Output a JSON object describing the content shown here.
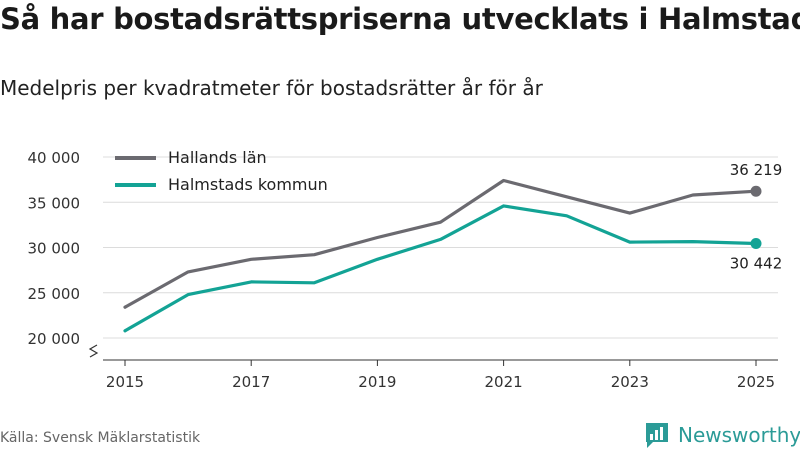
{
  "header": {
    "title": "Så har bostadsrättspriserna utvecklats i Halmstad",
    "subtitle": "Medelpris per kvadratmeter för bostadsrätter år för år"
  },
  "footer": {
    "source": "Källa: Svensk Mäklarstatistik",
    "brand": "Newsworthy",
    "brand_color": "#2b9b97"
  },
  "chart_data": {
    "type": "line",
    "title": "Så har bostadsrättspriserna utvecklats i Halmstad",
    "subtitle": "Medelpris per kvadratmeter för bostadsrätter år för år",
    "xlabel": "",
    "ylabel": "",
    "x": [
      2015,
      2016,
      2017,
      2018,
      2019,
      2020,
      2021,
      2022,
      2023,
      2024,
      2025
    ],
    "xticks": [
      "2015",
      "2017",
      "2019",
      "2021",
      "2023",
      "2025"
    ],
    "xtick_values": [
      2015,
      2017,
      2019,
      2021,
      2023,
      2025
    ],
    "ylim": [
      20000,
      40000
    ],
    "yticks": [
      "20 000",
      "25 000",
      "30 000",
      "35 000",
      "40 000"
    ],
    "ytick_values": [
      20000,
      25000,
      30000,
      35000,
      40000
    ],
    "y_axis_break": true,
    "grid": true,
    "legend_position": "top-left",
    "series": [
      {
        "name": "Hallands län",
        "color": "#6b6a70",
        "values": [
          23400,
          27300,
          28700,
          29200,
          31100,
          32800,
          37400,
          35600,
          33800,
          35800,
          36219
        ],
        "end_label": "36 219"
      },
      {
        "name": "Halmstads kommun",
        "color": "#13a395",
        "values": [
          20800,
          24800,
          26200,
          26100,
          28700,
          30900,
          34600,
          33500,
          30600,
          30650,
          30442
        ],
        "end_label": "30 442"
      }
    ]
  }
}
